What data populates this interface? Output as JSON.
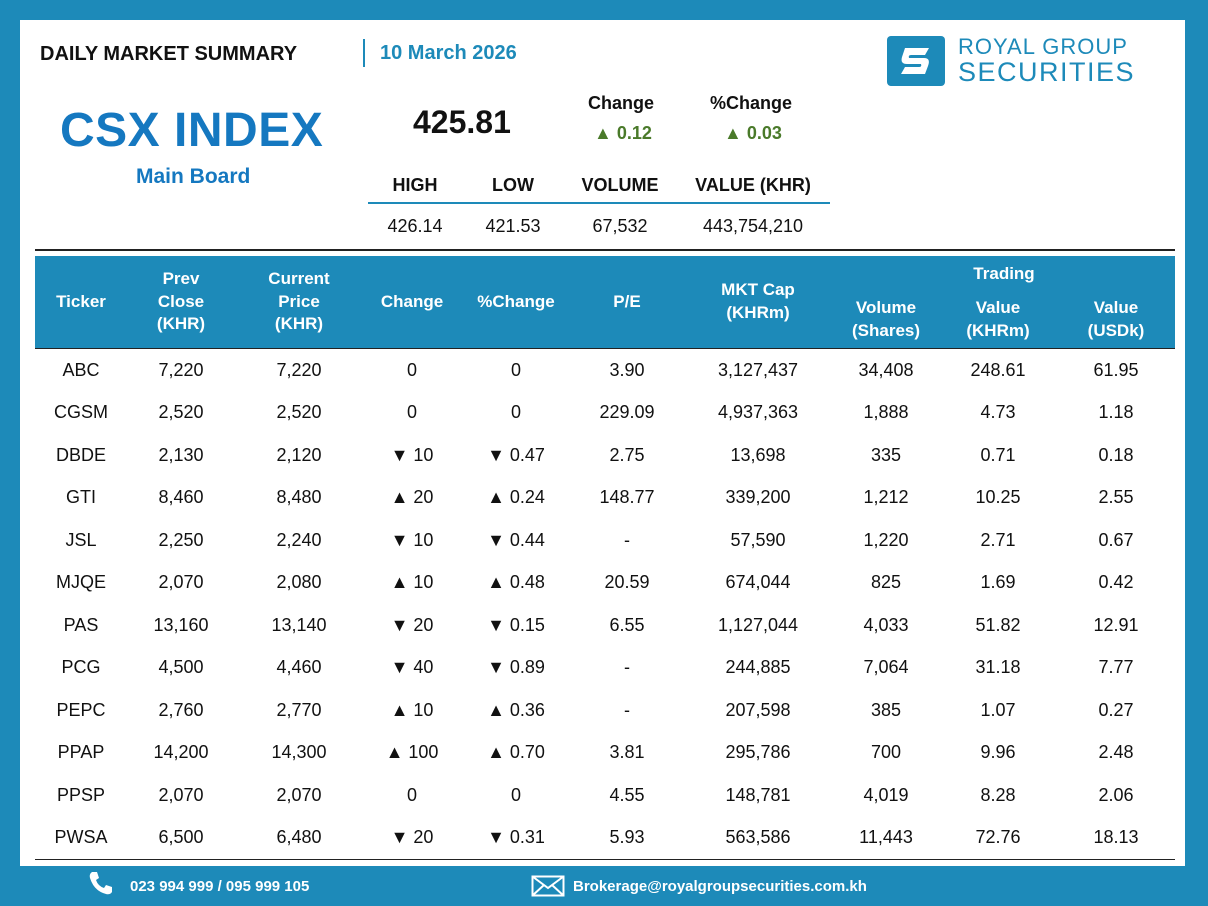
{
  "header": {
    "title": "DAILY MARKET SUMMARY",
    "date": "10 March 2026",
    "logo": {
      "line1": "ROYAL GROUP",
      "line2": "SECURITIES",
      "icon": "royal-group-logo-icon"
    }
  },
  "index": {
    "name": "CSX INDEX",
    "board": "Main Board",
    "value": "425.81",
    "change_label": "Change",
    "change_value": "▲ 0.12",
    "pct_change_label": "%Change",
    "pct_change_value": "▲ 0.03"
  },
  "stats": {
    "headers": [
      "HIGH",
      "LOW",
      "VOLUME",
      "VALUE (KHR)"
    ],
    "values": [
      "426.14",
      "421.53",
      "67,532",
      "443,754,210"
    ]
  },
  "table": {
    "headers": {
      "ticker": "Ticker",
      "prev_close": [
        "Prev",
        "Close",
        "(KHR)"
      ],
      "current_price": [
        "Current",
        "Price",
        "(KHR)"
      ],
      "change": "Change",
      "pct_change": "%Change",
      "pe": "P/E",
      "mkt_cap": [
        "MKT Cap",
        "(KHRm)"
      ],
      "trading": "Trading",
      "volume": [
        "Volume",
        "(Shares)"
      ],
      "value_khr": [
        "Value",
        "(KHRm)"
      ],
      "value_usd": [
        "Value",
        "(USDk)"
      ]
    },
    "rows": [
      {
        "ticker": "ABC",
        "prev": "7,220",
        "cur": "7,220",
        "chg": "0",
        "pct": "0",
        "dir": "flat",
        "pe": "3.90",
        "cap": "3,127,437",
        "vol": "34,408",
        "vkhr": "248.61",
        "vusd": "61.95"
      },
      {
        "ticker": "CGSM",
        "prev": "2,520",
        "cur": "2,520",
        "chg": "0",
        "pct": "0",
        "dir": "flat",
        "pe": "229.09",
        "cap": "4,937,363",
        "vol": "1,888",
        "vkhr": "4.73",
        "vusd": "1.18"
      },
      {
        "ticker": "DBDE",
        "prev": "2,130",
        "cur": "2,120",
        "chg": "▼ 10",
        "pct": "▼ 0.47",
        "dir": "down",
        "pe": "2.75",
        "cap": "13,698",
        "vol": "335",
        "vkhr": "0.71",
        "vusd": "0.18"
      },
      {
        "ticker": "GTI",
        "prev": "8,460",
        "cur": "8,480",
        "chg": "▲ 20",
        "pct": "▲ 0.24",
        "dir": "up",
        "pe": "148.77",
        "cap": "339,200",
        "vol": "1,212",
        "vkhr": "10.25",
        "vusd": "2.55"
      },
      {
        "ticker": "JSL",
        "prev": "2,250",
        "cur": "2,240",
        "chg": "▼ 10",
        "pct": "▼ 0.44",
        "dir": "down",
        "pe": "-",
        "cap": "57,590",
        "vol": "1,220",
        "vkhr": "2.71",
        "vusd": "0.67"
      },
      {
        "ticker": "MJQE",
        "prev": "2,070",
        "cur": "2,080",
        "chg": "▲ 10",
        "pct": "▲ 0.48",
        "dir": "up",
        "pe": "20.59",
        "cap": "674,044",
        "vol": "825",
        "vkhr": "1.69",
        "vusd": "0.42"
      },
      {
        "ticker": "PAS",
        "prev": "13,160",
        "cur": "13,140",
        "chg": "▼ 20",
        "pct": "▼ 0.15",
        "dir": "down",
        "pe": "6.55",
        "cap": "1,127,044",
        "vol": "4,033",
        "vkhr": "51.82",
        "vusd": "12.91"
      },
      {
        "ticker": "PCG",
        "prev": "4,500",
        "cur": "4,460",
        "chg": "▼ 40",
        "pct": "▼ 0.89",
        "dir": "down",
        "pe": "-",
        "cap": "244,885",
        "vol": "7,064",
        "vkhr": "31.18",
        "vusd": "7.77"
      },
      {
        "ticker": "PEPC",
        "prev": "2,760",
        "cur": "2,770",
        "chg": "▲ 10",
        "pct": "▲ 0.36",
        "dir": "up",
        "pe": "-",
        "cap": "207,598",
        "vol": "385",
        "vkhr": "1.07",
        "vusd": "0.27"
      },
      {
        "ticker": "PPAP",
        "prev": "14,200",
        "cur": "14,300",
        "chg": "▲ 100",
        "pct": "▲ 0.70",
        "dir": "up",
        "pe": "3.81",
        "cap": "295,786",
        "vol": "700",
        "vkhr": "9.96",
        "vusd": "2.48"
      },
      {
        "ticker": "PPSP",
        "prev": "2,070",
        "cur": "2,070",
        "chg": "0",
        "pct": "0",
        "dir": "flat",
        "pe": "4.55",
        "cap": "148,781",
        "vol": "4,019",
        "vkhr": "8.28",
        "vusd": "2.06"
      },
      {
        "ticker": "PWSA",
        "prev": "6,500",
        "cur": "6,480",
        "chg": "▼ 20",
        "pct": "▼ 0.31",
        "dir": "down",
        "pe": "5.93",
        "cap": "563,586",
        "vol": "11,443",
        "vkhr": "72.76",
        "vusd": "18.13"
      }
    ]
  },
  "footer": {
    "phone": "023 994 999 / 095 999 105",
    "phone_icon": "phone-icon",
    "email": "Brokerage@royalgroupsecurities.com.kh",
    "email_icon": "envelope-icon"
  },
  "colors": {
    "brand_blue": "#1d8ab9",
    "title_blue": "#1578c0",
    "up_green": "#3a6b22",
    "down_red": "#c0151b"
  }
}
